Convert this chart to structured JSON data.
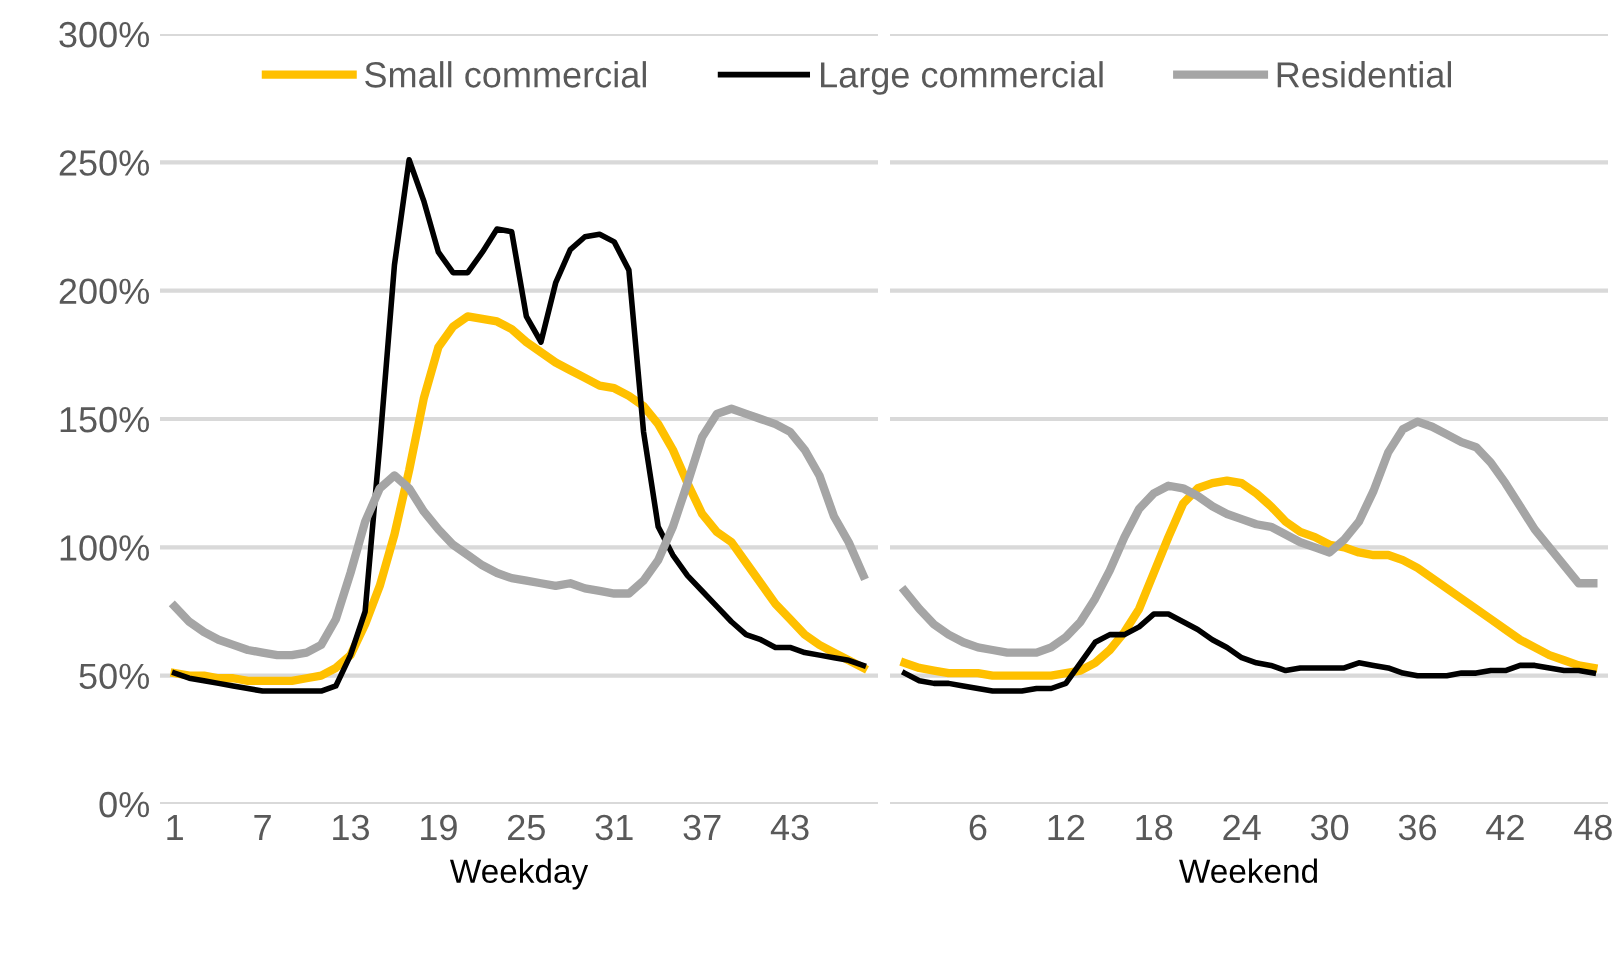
{
  "chart_data": [
    {
      "type": "line",
      "xlabel": "Weekday",
      "x": [
        1,
        2,
        3,
        4,
        5,
        6,
        7,
        8,
        9,
        10,
        11,
        12,
        13,
        14,
        15,
        16,
        17,
        18,
        19,
        20,
        21,
        22,
        23,
        24,
        25,
        26,
        27,
        28,
        29,
        30,
        31,
        32,
        33,
        34,
        35,
        36,
        37,
        38,
        39,
        40,
        41,
        42,
        43,
        44,
        45,
        46,
        47,
        48
      ],
      "xlim": [
        0,
        49
      ],
      "xticks": [
        1,
        7,
        13,
        19,
        25,
        31,
        37,
        43
      ],
      "ylim": [
        0,
        300
      ],
      "yticks": [
        {
          "value": 0,
          "label": "0%"
        },
        {
          "value": 50,
          "label": "50%"
        },
        {
          "value": 100,
          "label": "100%"
        },
        {
          "value": 150,
          "label": "150%"
        },
        {
          "value": 200,
          "label": "200%"
        },
        {
          "value": 250,
          "label": "250%"
        },
        {
          "value": 300,
          "label": "300%"
        }
      ],
      "grid": "y",
      "legend": "top",
      "marker": "none",
      "line_style": "solid",
      "series": [
        {
          "name": "Small commercial",
          "color": "#ffc000",
          "values": [
            51,
            50,
            50,
            49,
            49,
            48,
            48,
            48,
            48,
            49,
            50,
            53,
            58,
            70,
            85,
            105,
            130,
            158,
            178,
            186,
            190,
            189,
            188,
            185,
            180,
            176,
            172,
            169,
            166,
            163,
            162,
            159,
            155,
            148,
            138,
            125,
            113,
            106,
            102,
            94,
            86,
            78,
            72,
            66,
            62,
            59,
            56,
            53
          ]
        },
        {
          "name": "Large commercial",
          "color": "#000000",
          "values": [
            51,
            49,
            48,
            47,
            46,
            45,
            44,
            44,
            44,
            44,
            44,
            46,
            58,
            75,
            140,
            210,
            251,
            235,
            215,
            207,
            207,
            215,
            224,
            223,
            190,
            180,
            203,
            216,
            221,
            222,
            219,
            208,
            145,
            108,
            97,
            89,
            83,
            77,
            71,
            66,
            64,
            61,
            61,
            59,
            58,
            57,
            56,
            54
          ]
        },
        {
          "name": "Residential",
          "color": "#a5a5a5",
          "values": [
            77,
            71,
            67,
            64,
            62,
            60,
            59,
            58,
            58,
            59,
            62,
            72,
            90,
            110,
            123,
            128,
            123,
            114,
            107,
            101,
            97,
            93,
            90,
            88,
            87,
            86,
            85,
            86,
            84,
            83,
            82,
            82,
            87,
            95,
            108,
            125,
            143,
            152,
            154,
            152,
            150,
            148,
            145,
            138,
            128,
            112,
            102,
            89
          ]
        }
      ]
    },
    {
      "type": "line",
      "xlabel": "Weekend",
      "x": [
        1,
        2,
        3,
        4,
        5,
        6,
        7,
        8,
        9,
        10,
        11,
        12,
        13,
        14,
        15,
        16,
        17,
        18,
        19,
        20,
        21,
        22,
        23,
        24,
        25,
        26,
        27,
        28,
        29,
        30,
        31,
        32,
        33,
        34,
        35,
        36,
        37,
        38,
        39,
        40,
        41,
        42,
        43,
        44,
        45,
        46,
        47,
        48
      ],
      "xlim": [
        0,
        49
      ],
      "xticks": [
        6,
        12,
        18,
        24,
        30,
        36,
        42,
        48
      ],
      "ylim": [
        0,
        300
      ],
      "yticks": [
        0,
        50,
        100,
        150,
        200,
        250,
        300
      ],
      "tick_labels": "x",
      "grid": "y",
      "marker": "none",
      "line_style": "solid",
      "series": [
        {
          "color": "#ffc000",
          "values": [
            55,
            53,
            52,
            51,
            51,
            51,
            50,
            50,
            50,
            50,
            50,
            51,
            52,
            55,
            60,
            67,
            76,
            90,
            104,
            117,
            123,
            125,
            126,
            125,
            121,
            116,
            110,
            106,
            104,
            101,
            100,
            98,
            97,
            97,
            95,
            92,
            88,
            84,
            80,
            76,
            72,
            68,
            64,
            61,
            58,
            56,
            54,
            53
          ]
        },
        {
          "color": "#000000",
          "values": [
            51,
            48,
            47,
            47,
            46,
            45,
            44,
            44,
            44,
            45,
            45,
            47,
            55,
            63,
            66,
            66,
            69,
            74,
            74,
            71,
            68,
            64,
            61,
            57,
            55,
            54,
            52,
            53,
            53,
            53,
            53,
            55,
            54,
            53,
            51,
            50,
            50,
            50,
            51,
            51,
            52,
            52,
            54,
            54,
            53,
            52,
            52,
            51
          ]
        },
        {
          "color": "#a5a5a5",
          "values": [
            83,
            76,
            70,
            66,
            63,
            61,
            60,
            59,
            59,
            59,
            61,
            65,
            71,
            80,
            91,
            104,
            115,
            121,
            124,
            123,
            120,
            116,
            113,
            111,
            109,
            108,
            105,
            102,
            100,
            98,
            103,
            110,
            122,
            137,
            146,
            149,
            147,
            144,
            141,
            139,
            133,
            125,
            116,
            107,
            100,
            93,
            86,
            86
          ]
        }
      ]
    }
  ]
}
